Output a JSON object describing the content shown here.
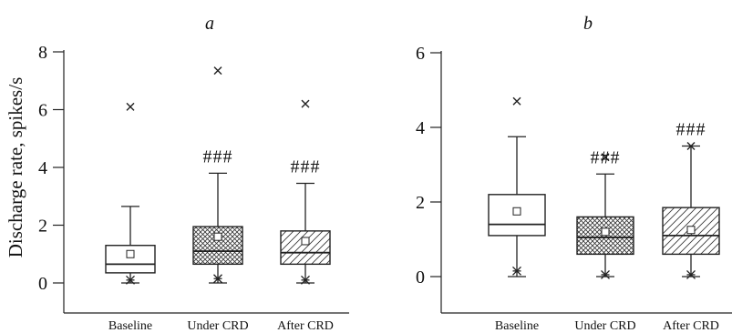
{
  "ylabel": "Discharge rate, spikes/s",
  "chart_data": [
    {
      "type": "box",
      "panel_label": "a",
      "ylabel": "Discharge rate, spikes/s",
      "ylim": [
        0,
        8
      ],
      "yticks": [
        0,
        2,
        4,
        6,
        8
      ],
      "categories": [
        "Baseline",
        "Under CRD",
        "After CRD"
      ],
      "boxes": [
        {
          "category": "Baseline",
          "q1": 0.35,
          "median": 0.65,
          "q3": 1.3,
          "whisker_low": 0.0,
          "whisker_high": 2.65,
          "mean": 1.0,
          "p_low": 0.1,
          "outlier_high": 6.1,
          "pattern": "none",
          "annotation": ""
        },
        {
          "category": "Under CRD",
          "q1": 0.65,
          "median": 1.1,
          "q3": 1.95,
          "whisker_low": 0.0,
          "whisker_high": 3.8,
          "mean": 1.6,
          "p_low": 0.15,
          "outlier_high": 7.35,
          "pattern": "cross",
          "annotation": "###"
        },
        {
          "category": "After CRD",
          "q1": 0.65,
          "median": 1.05,
          "q3": 1.8,
          "whisker_low": 0.0,
          "whisker_high": 3.45,
          "mean": 1.45,
          "p_low": 0.1,
          "outlier_high": 6.2,
          "pattern": "hatch",
          "annotation": "###"
        }
      ]
    },
    {
      "type": "box",
      "panel_label": "b",
      "ylim": [
        0,
        6
      ],
      "yticks": [
        0,
        2,
        4,
        6
      ],
      "categories": [
        "Baseline",
        "Under CRD",
        "After CRD"
      ],
      "boxes": [
        {
          "category": "Baseline",
          "q1": 1.1,
          "median": 1.4,
          "q3": 2.2,
          "whisker_low": 0.0,
          "whisker_high": 3.75,
          "mean": 1.75,
          "p_low": 0.15,
          "outlier_high": 4.7,
          "pattern": "none",
          "annotation": ""
        },
        {
          "category": "Under CRD",
          "q1": 0.6,
          "median": 1.05,
          "q3": 1.6,
          "whisker_low": 0.0,
          "whisker_high": 2.75,
          "mean": 1.2,
          "p_low": 0.05,
          "outlier_high": 3.2,
          "pattern": "cross",
          "annotation": "###"
        },
        {
          "category": "After CRD",
          "q1": 0.6,
          "median": 1.1,
          "q3": 1.85,
          "whisker_low": 0.0,
          "whisker_high": 3.5,
          "mean": 1.25,
          "p_low": 0.05,
          "outlier_high": 3.5,
          "pattern": "hatch",
          "annotation": "###"
        }
      ]
    }
  ]
}
